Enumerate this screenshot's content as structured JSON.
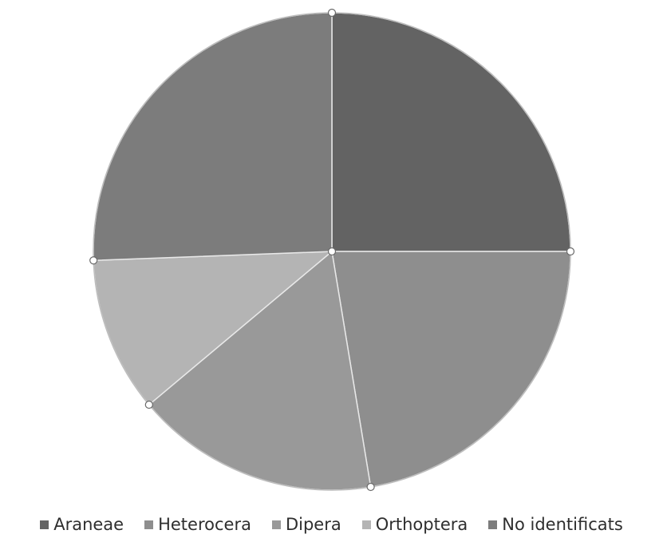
{
  "chart_data": {
    "type": "pie",
    "title": "",
    "start_angle_deg": 0,
    "direction": "clockwise",
    "legend_position": "bottom",
    "series": [
      {
        "name": "Araneae",
        "value": 25.0,
        "color": "#636363"
      },
      {
        "name": "Heterocera",
        "value": 22.4,
        "color": "#8e8e8e"
      },
      {
        "name": "Dipera",
        "value": 16.5,
        "color": "#999999"
      },
      {
        "name": "Orthoptera",
        "value": 10.5,
        "color": "#b4b4b4"
      },
      {
        "name": "No identificats",
        "value": 25.6,
        "color": "#7c7c7c"
      }
    ]
  }
}
